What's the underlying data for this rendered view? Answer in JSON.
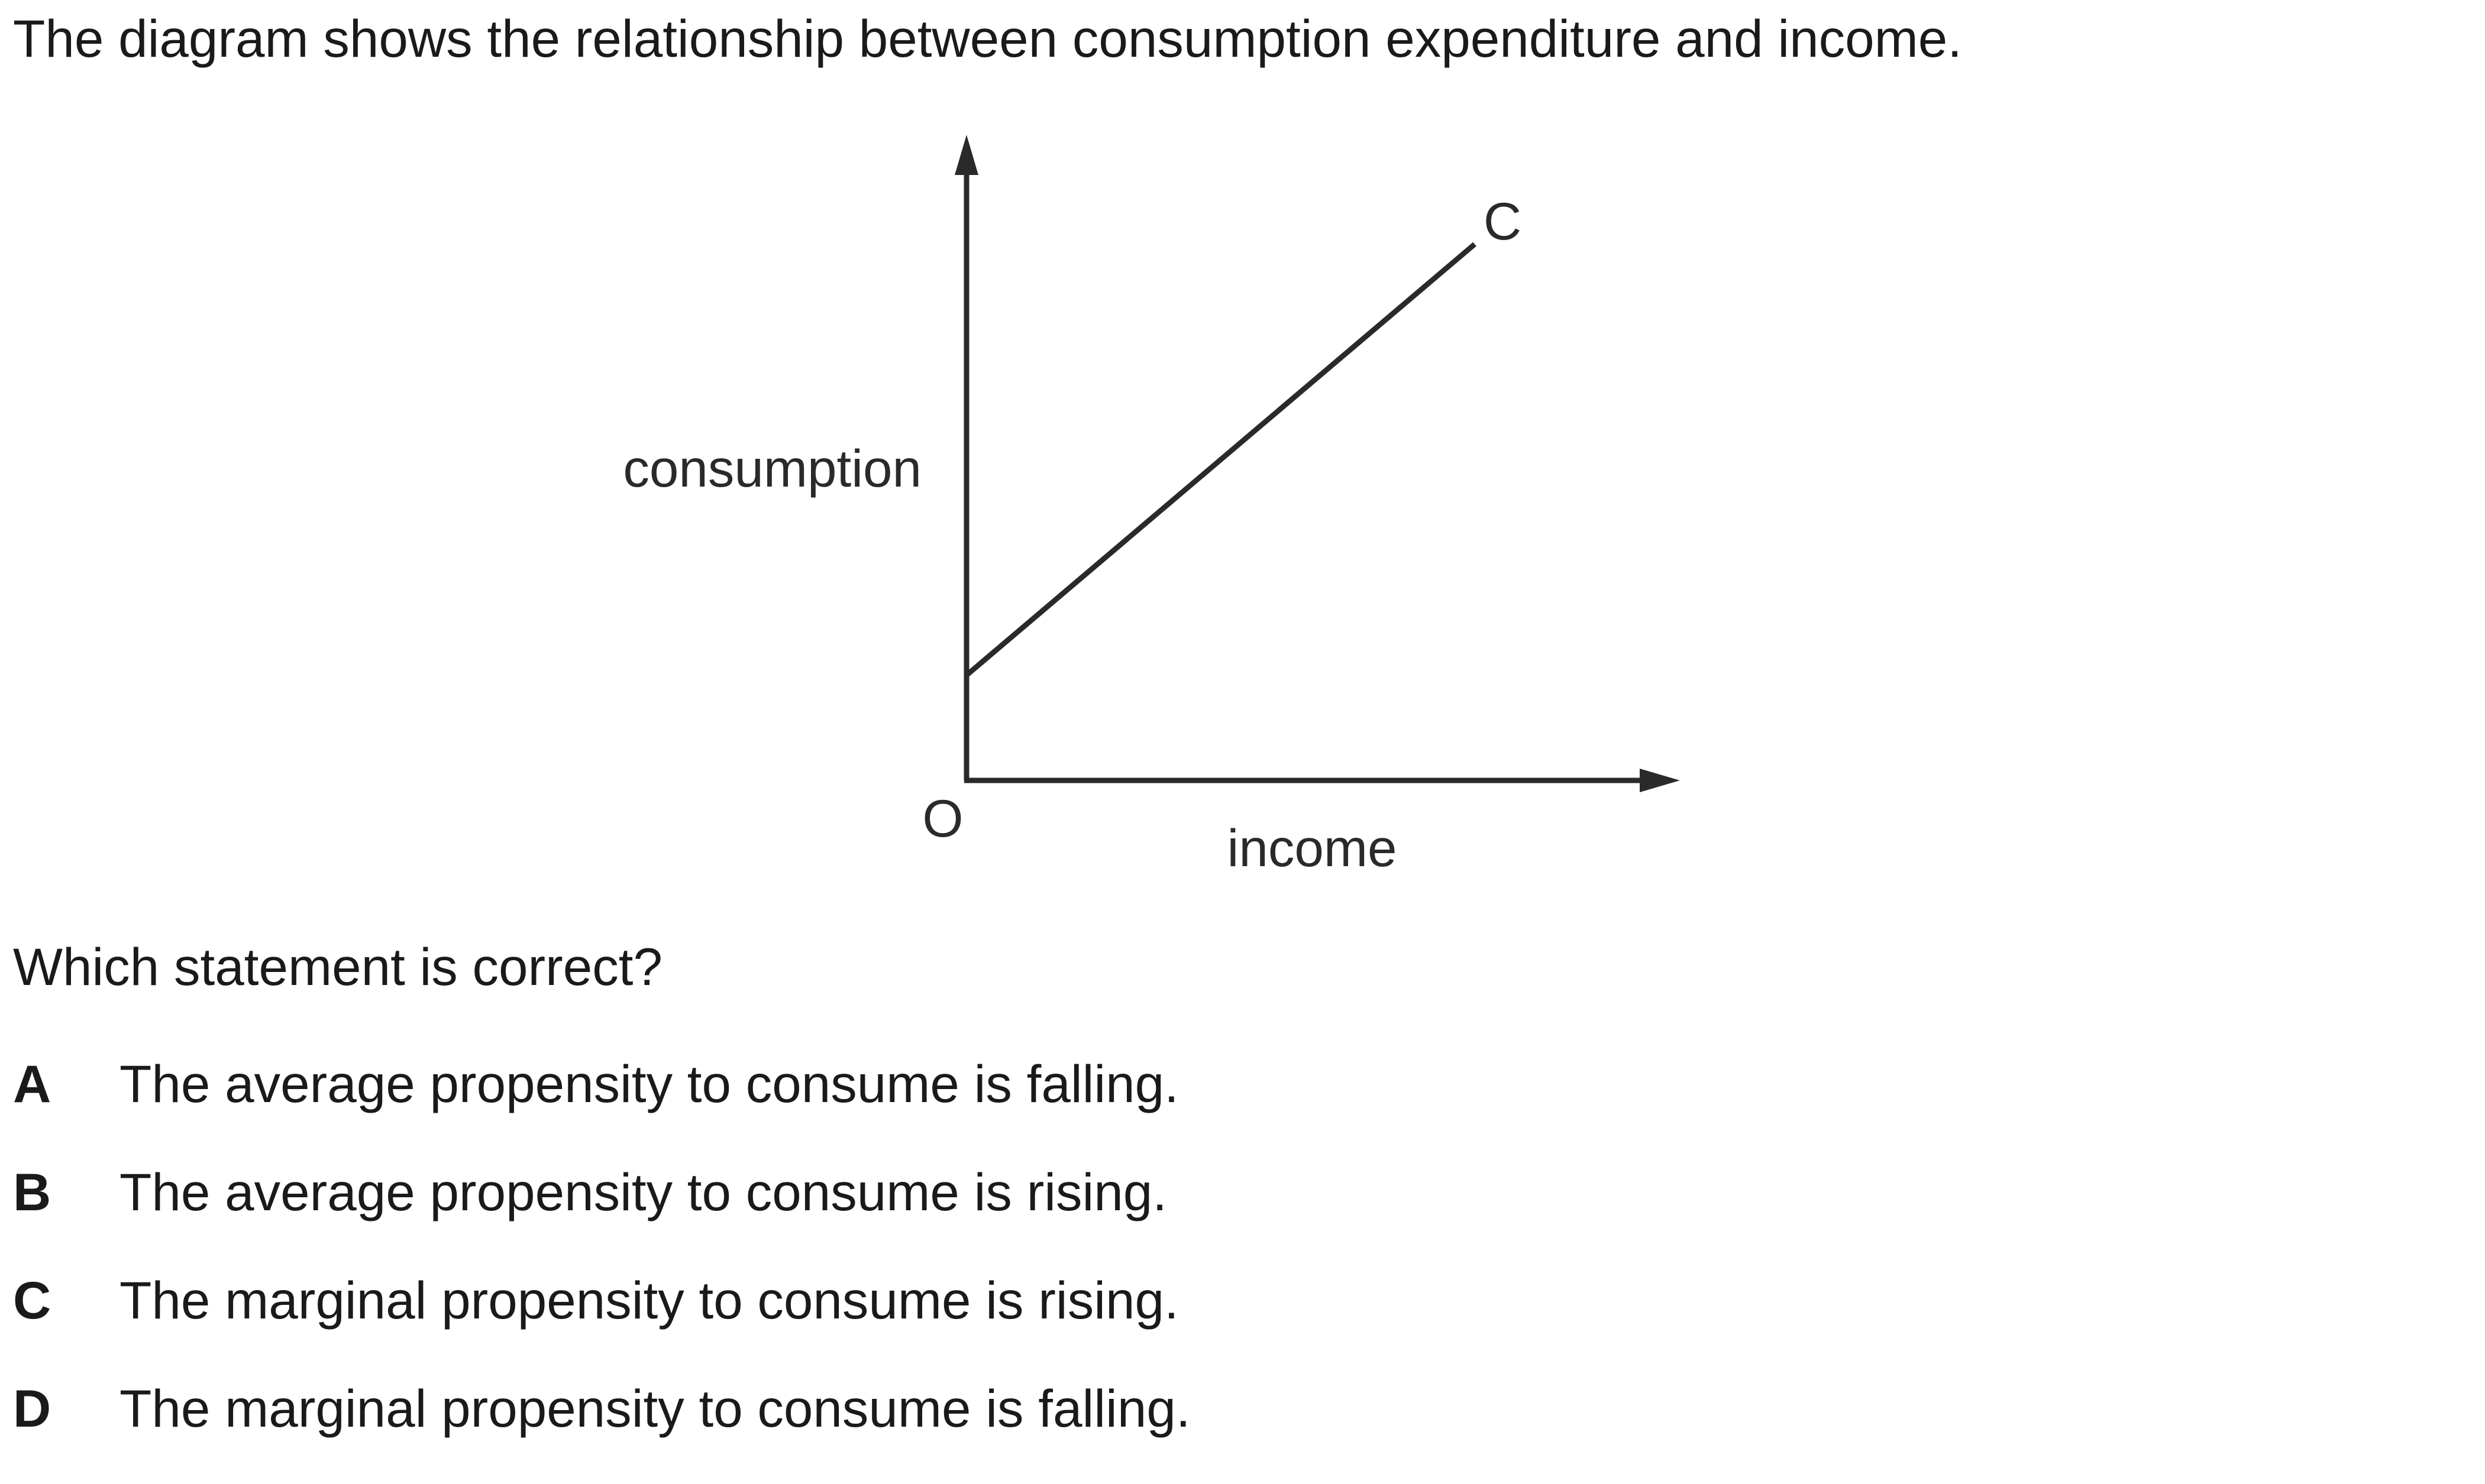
{
  "intro_text": "The diagram shows the relationship between consumption expenditure and income.",
  "diagram": {
    "y_axis_label": "consumption",
    "x_axis_label": "income",
    "origin_label": "O",
    "line_label": "C",
    "line_color": "#2a2a2a"
  },
  "question": "Which statement is correct?",
  "options": [
    {
      "letter": "A",
      "text": "The average propensity to consume is falling."
    },
    {
      "letter": "B",
      "text": "The average propensity to consume is rising."
    },
    {
      "letter": "C",
      "text": "The marginal propensity to consume is rising."
    },
    {
      "letter": "D",
      "text": "The marginal propensity to consume is falling."
    }
  ]
}
